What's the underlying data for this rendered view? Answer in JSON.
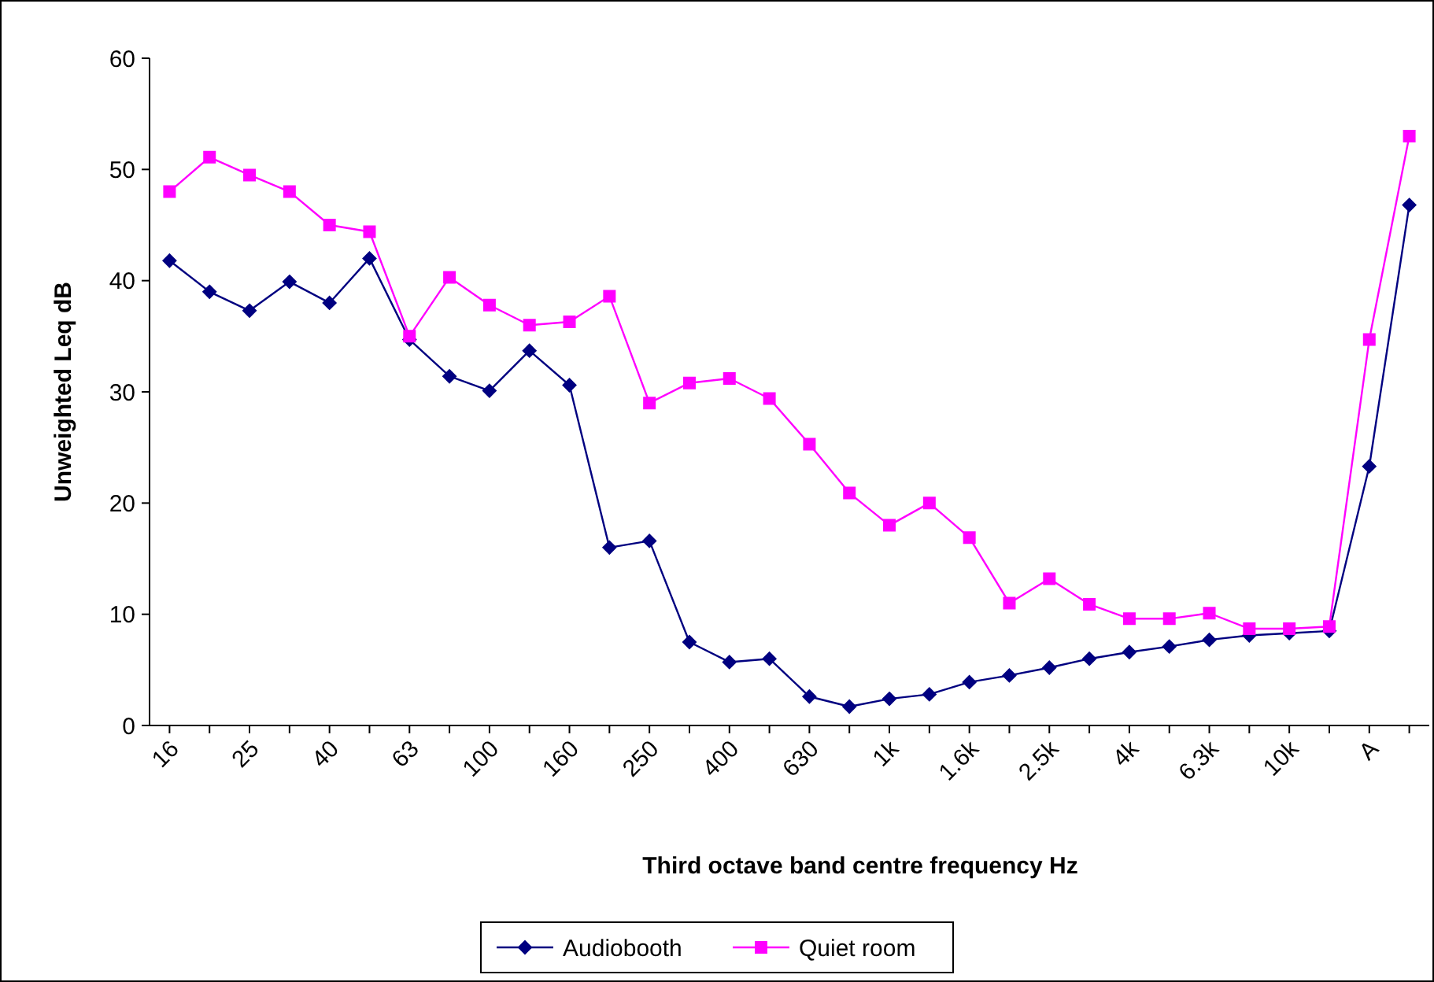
{
  "chart_data": {
    "type": "line",
    "xlabel": "Third octave band centre frequency Hz",
    "ylabel": "Unweighted Leq dB",
    "categories": [
      "16",
      null,
      "25",
      null,
      "40",
      null,
      "63",
      null,
      "100",
      null,
      "160",
      null,
      "250",
      null,
      "400",
      null,
      "630",
      null,
      "1k",
      null,
      "1.6k",
      null,
      "2.5k",
      null,
      "4k",
      null,
      "6.3k",
      null,
      "10k",
      null,
      "A",
      null
    ],
    "ylim": [
      0,
      60
    ],
    "yticks": [
      0,
      10,
      20,
      30,
      40,
      50,
      60
    ],
    "grid": false,
    "legend": "bottom",
    "series": [
      {
        "name": "Audiobooth",
        "color": "#000080",
        "marker": "diamond",
        "values": [
          41.8,
          39,
          37.3,
          39.9,
          38,
          42,
          34.7,
          31.4,
          30.1,
          33.7,
          30.6,
          16,
          16.6,
          7.5,
          5.7,
          6,
          2.6,
          1.7,
          2.4,
          2.8,
          3.9,
          4.5,
          5.2,
          6,
          6.6,
          7.1,
          7.7,
          8.1,
          8.3,
          8.5,
          23.3,
          46.8
        ]
      },
      {
        "name": "Quiet room",
        "color": "#ff00ff",
        "marker": "square",
        "values": [
          48,
          51.1,
          49.5,
          48,
          45,
          44.4,
          35,
          40.3,
          37.8,
          36,
          36.3,
          38.6,
          29,
          30.8,
          31.2,
          29.4,
          25.3,
          20.9,
          18,
          20,
          16.9,
          11,
          13.2,
          10.9,
          9.6,
          9.6,
          10.1,
          8.7,
          8.7,
          8.9,
          34.7,
          53
        ]
      }
    ]
  }
}
